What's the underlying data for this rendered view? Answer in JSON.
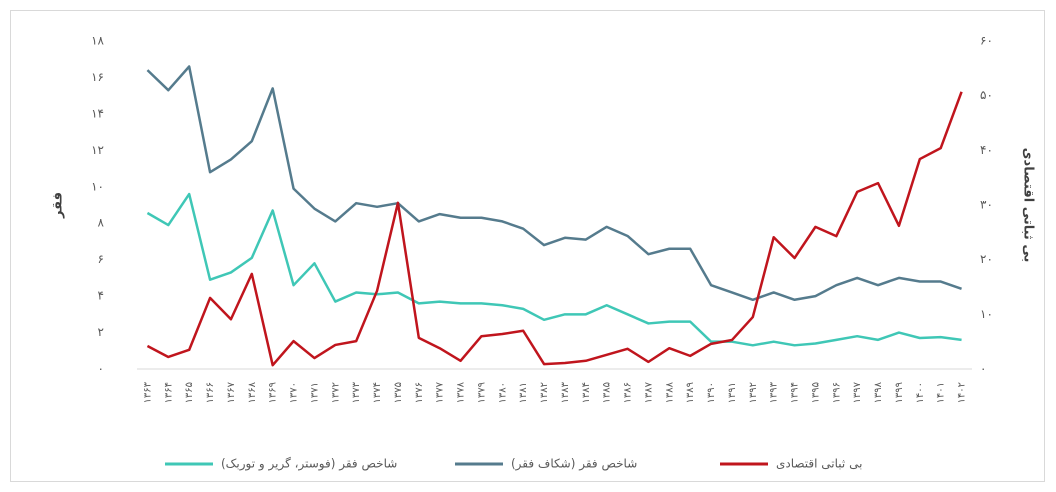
{
  "chart_data": {
    "type": "line",
    "categories": [
      "۱۳۶۳",
      "۱۳۶۴",
      "۱۳۶۵",
      "۱۳۶۶",
      "۱۳۶۷",
      "۱۳۶۸",
      "۱۳۶۹",
      "۱۳۷۰",
      "۱۳۷۱",
      "۱۳۷۲",
      "۱۳۷۳",
      "۱۳۷۴",
      "۱۳۷۵",
      "۱۳۷۶",
      "۱۳۷۷",
      "۱۳۷۸",
      "۱۳۷۹",
      "۱۳۸۰",
      "۱۳۸۱",
      "۱۳۸۲",
      "۱۳۸۳",
      "۱۳۸۴",
      "۱۳۸۵",
      "۱۳۸۶",
      "۱۳۸۷",
      "۱۳۸۸",
      "۱۳۸۹",
      "۱۳۹۰",
      "۱۳۹۱",
      "۱۳۹۲",
      "۱۳۹۳",
      "۱۳۹۴",
      "۱۳۹۵",
      "۱۳۹۶",
      "۱۳۹۷",
      "۱۳۹۸",
      "۱۳۹۹",
      "۱۴۰۰",
      "۱۴۰۱",
      "۱۴۰۲"
    ],
    "ylabel": "فقر",
    "y2label": "بی ثباتی اقتصادی",
    "ylim": [
      0,
      18
    ],
    "yticks": [
      {
        "value": 0,
        "label": "۰"
      },
      {
        "value": 2,
        "label": "۲"
      },
      {
        "value": 4,
        "label": "۴"
      },
      {
        "value": 6,
        "label": "۶"
      },
      {
        "value": 8,
        "label": "۸"
      },
      {
        "value": 10,
        "label": "۱۰"
      },
      {
        "value": 12,
        "label": "۱۲"
      },
      {
        "value": 14,
        "label": "۱۴"
      },
      {
        "value": 16,
        "label": "۱۶"
      },
      {
        "value": 18,
        "label": "۱۸"
      }
    ],
    "y2lim": [
      0,
      60
    ],
    "y2ticks": [
      {
        "value": 0,
        "label": "۰"
      },
      {
        "value": 10,
        "label": "۱۰"
      },
      {
        "value": 20,
        "label": "۲۰"
      },
      {
        "value": 30,
        "label": "۳۰"
      },
      {
        "value": 40,
        "label": "۴۰"
      },
      {
        "value": 50,
        "label": "۵۰"
      },
      {
        "value": 60,
        "label": "۶۰"
      }
    ],
    "series": [
      {
        "name": "شاخص فقر (فوستر، گریر و توربک)",
        "color": "#3fc7b6",
        "values": [
          8.56,
          7.9,
          9.6,
          4.9,
          5.3,
          6.1,
          8.7,
          4.6,
          5.8,
          3.7,
          4.2,
          4.1,
          4.2,
          3.6,
          3.7,
          3.6,
          3.6,
          3.5,
          3.3,
          2.7,
          3.0,
          3.0,
          3.5,
          3.0,
          2.5,
          2.6,
          2.6,
          1.5,
          1.5,
          1.3,
          1.5,
          1.3,
          1.4,
          1.6,
          1.8,
          1.6,
          2.0,
          1.7,
          1.75,
          1.6
        ]
      },
      {
        "name": "شاخص فقر (شکاف فقر)",
        "color": "#557b8d",
        "values": [
          16.4,
          15.3,
          16.6,
          10.8,
          11.5,
          12.5,
          15.4,
          9.9,
          8.8,
          8.1,
          9.1,
          8.9,
          9.1,
          8.1,
          8.5,
          8.3,
          8.3,
          8.1,
          7.7,
          6.8,
          7.2,
          7.1,
          7.8,
          7.3,
          6.3,
          6.6,
          6.6,
          4.6,
          4.2,
          3.8,
          4.2,
          3.8,
          4.0,
          4.6,
          5.0,
          4.6,
          5.0,
          4.8,
          4.8,
          4.4
        ]
      },
      {
        "name": "بی ثباتی اقتصادی",
        "color": "#c0151d",
        "axis": "y2",
        "values": [
          4.2,
          2.2,
          3.5,
          13.0,
          9.1,
          17.4,
          0.7,
          5.1,
          2.0,
          4.4,
          5.1,
          14.3,
          30.4,
          5.7,
          3.8,
          1.5,
          6.0,
          6.4,
          7.0,
          0.9,
          1.1,
          1.5,
          2.6,
          3.7,
          1.3,
          3.8,
          2.4,
          4.6,
          5.3,
          9.5,
          24.1,
          20.3,
          26.0,
          24.3,
          32.4,
          34.0,
          26.2,
          38.4,
          40.4,
          50.7
        ]
      }
    ]
  }
}
